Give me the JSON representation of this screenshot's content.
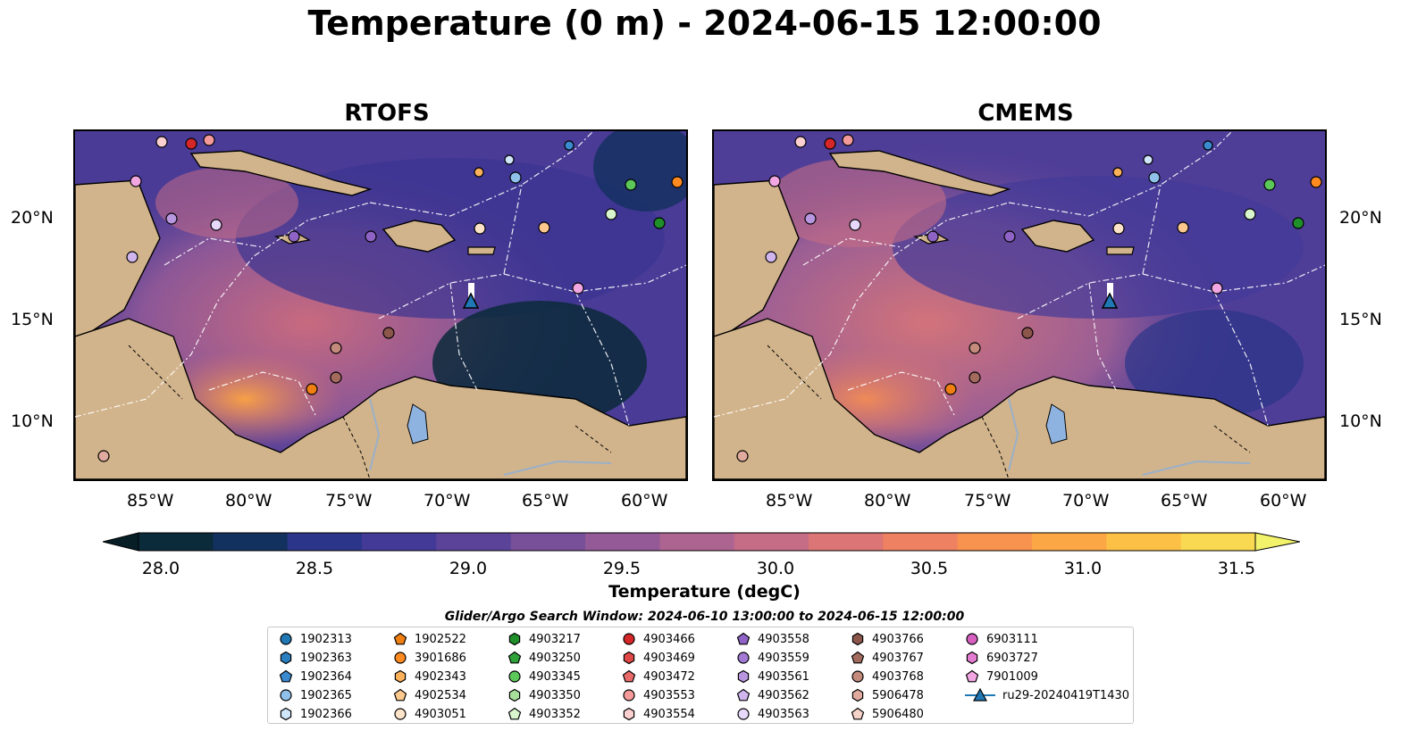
{
  "title": "Temperature (0 m) - 2024-06-15 12:00:00",
  "panels": [
    {
      "title": "RTOFS"
    },
    {
      "title": "CMEMS"
    }
  ],
  "lat_labels": [
    "20°N",
    "15°N",
    "10°N"
  ],
  "lon_labels": [
    "85°W",
    "80°W",
    "75°W",
    "70°W",
    "65°W",
    "60°W"
  ],
  "colorbar": {
    "label": "Temperature (degC)",
    "ticks": [
      "28.0",
      "28.5",
      "29.0",
      "29.5",
      "30.0",
      "30.5",
      "31.0",
      "31.5"
    ],
    "colors": [
      "#0b2a3a",
      "#13315f",
      "#2b3589",
      "#433a98",
      "#5b4399",
      "#78509a",
      "#935a97",
      "#ad6491",
      "#c56c86",
      "#dc7575",
      "#ee8161",
      "#f8934f",
      "#fca745",
      "#fdc046",
      "#f9d852"
    ]
  },
  "search_window": "Glider/Argo Search Window: 2024-06-10 13:00:00 to 2024-06-15 12:00:00",
  "legend": [
    {
      "label": "1902313",
      "color": "#1f77b4",
      "shape": "circle"
    },
    {
      "label": "1902363",
      "color": "#2a7fc0",
      "shape": "hexagon"
    },
    {
      "label": "1902364",
      "color": "#3b8ad0",
      "shape": "pentagon"
    },
    {
      "label": "1902365",
      "color": "#8fc1ea",
      "shape": "circle"
    },
    {
      "label": "1902366",
      "color": "#cfe6fb",
      "shape": "hexagon"
    },
    {
      "label": "1902522",
      "color": "#f07f12",
      "shape": "pentagon"
    },
    {
      "label": "3901686",
      "color": "#ff8a1f",
      "shape": "circle"
    },
    {
      "label": "4902343",
      "color": "#fbb05a",
      "shape": "hexagon"
    },
    {
      "label": "4902534",
      "color": "#fbc98e",
      "shape": "pentagon"
    },
    {
      "label": "4903051",
      "color": "#fde3c8",
      "shape": "circle"
    },
    {
      "label": "4903217",
      "color": "#1f8f2a",
      "shape": "hexagon"
    },
    {
      "label": "4903250",
      "color": "#2fa23a",
      "shape": "pentagon"
    },
    {
      "label": "4903345",
      "color": "#5cc85a",
      "shape": "circle"
    },
    {
      "label": "4903350",
      "color": "#a7e09a",
      "shape": "hexagon"
    },
    {
      "label": "4903352",
      "color": "#d8f5cd",
      "shape": "pentagon"
    },
    {
      "label": "4903466",
      "color": "#d62728",
      "shape": "circle"
    },
    {
      "label": "4903469",
      "color": "#e04848",
      "shape": "hexagon"
    },
    {
      "label": "4903472",
      "color": "#ea6a6a",
      "shape": "pentagon"
    },
    {
      "label": "4903553",
      "color": "#f59a9a",
      "shape": "circle"
    },
    {
      "label": "4903554",
      "color": "#fcd0d0",
      "shape": "hexagon"
    },
    {
      "label": "4903558",
      "color": "#8e63c5",
      "shape": "pentagon"
    },
    {
      "label": "4903559",
      "color": "#a37bd4",
      "shape": "circle"
    },
    {
      "label": "4903561",
      "color": "#b996e0",
      "shape": "hexagon"
    },
    {
      "label": "4903562",
      "color": "#d0b5ee",
      "shape": "pentagon"
    },
    {
      "label": "4903563",
      "color": "#e8d8fb",
      "shape": "circle"
    },
    {
      "label": "4903766",
      "color": "#8c564b",
      "shape": "hexagon"
    },
    {
      "label": "4903767",
      "color": "#a36b5d",
      "shape": "pentagon"
    },
    {
      "label": "4903768",
      "color": "#c48a7c",
      "shape": "circle"
    },
    {
      "label": "5906478",
      "color": "#e0ab9e",
      "shape": "hexagon"
    },
    {
      "label": "5906480",
      "color": "#f6d3c8",
      "shape": "pentagon"
    },
    {
      "label": "6903111",
      "color": "#d65fc0",
      "shape": "circle"
    },
    {
      "label": "6903727",
      "color": "#e37cd0",
      "shape": "hexagon"
    },
    {
      "label": "7901009",
      "color": "#f2a6e2",
      "shape": "pentagon"
    },
    {
      "label": "ru29-20240419T1430",
      "color": "#1f77b4",
      "shape": "triangle-line"
    }
  ]
}
